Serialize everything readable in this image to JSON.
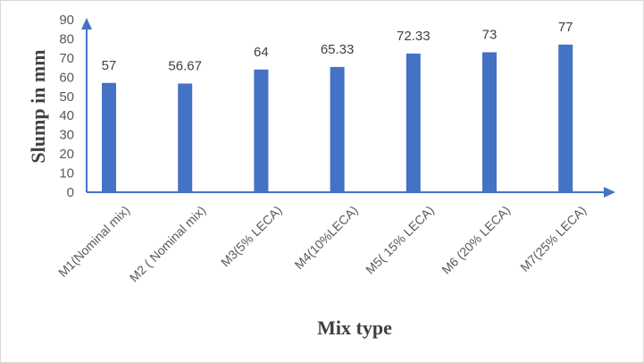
{
  "chart_data": {
    "type": "bar",
    "title": "",
    "xlabel": "Mix type",
    "ylabel": "Slump in mm",
    "ylim": [
      0,
      90
    ],
    "yticks": [
      0,
      10,
      20,
      30,
      40,
      50,
      60,
      70,
      80,
      90
    ],
    "categories": [
      "M1(Nominal mix)",
      "M2 ( Nominal mix)",
      "M3(5% LECA)",
      "M4(10%LECA)",
      "M5( 15% LECA)",
      "M6 (20% LECA)",
      "M7(25% LECA)"
    ],
    "values": [
      57,
      56.67,
      64,
      65.33,
      72.33,
      73,
      77
    ],
    "data_labels": [
      "57",
      "56.67",
      "64",
      "65.33",
      "72.33",
      "73",
      "77"
    ],
    "grid": false,
    "legend": "none",
    "bar_color": "#4472C4",
    "axis_color": "#4472C4"
  }
}
